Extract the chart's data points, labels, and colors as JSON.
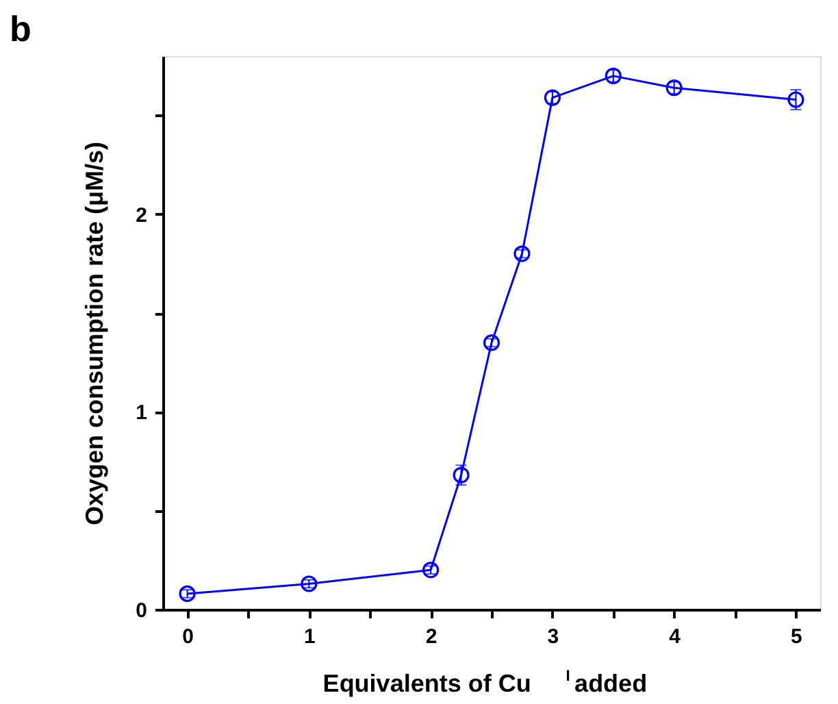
{
  "chart_data": {
    "type": "line",
    "xlabel": "Equivalents of Cu$^{I}$ added",
    "ylabel": "Oxygen consumption rate (μM/s)",
    "annotations": [
      "b"
    ],
    "x": [
      0,
      1,
      2,
      2.25,
      2.5,
      2.75,
      3,
      3.5,
      4,
      5
    ],
    "series": [
      {
        "color": "#0000ff",
        "values": [
          0.08,
          0.13,
          0.2,
          0.68,
          1.35,
          1.8,
          2.59,
          2.7,
          2.64,
          2.58
        ],
        "errors": [
          0.02,
          0.02,
          0.02,
          0.05,
          0.02,
          0.02,
          0.03,
          0.03,
          0.03,
          0.05
        ]
      }
    ],
    "xlim": [
      -0.2,
      5.2
    ],
    "ylim": [
      0,
      2.8
    ],
    "xticks": [
      0,
      {
        "value": 0.5,
        "label": null
      },
      1,
      {
        "value": 1.5,
        "label": null
      },
      2,
      {
        "value": 2.5,
        "label": null
      },
      3,
      {
        "value": 3.5,
        "label": null
      },
      4,
      {
        "value": 4.5,
        "label": null
      },
      5
    ],
    "yticks": [
      0,
      {
        "value": 0.5,
        "label": null
      },
      1,
      {
        "value": 1.5,
        "label": null
      },
      2,
      {
        "value": 2.5,
        "label": null
      }
    ],
    "marker": "circle",
    "line_style": "solid",
    "grid": false
  }
}
